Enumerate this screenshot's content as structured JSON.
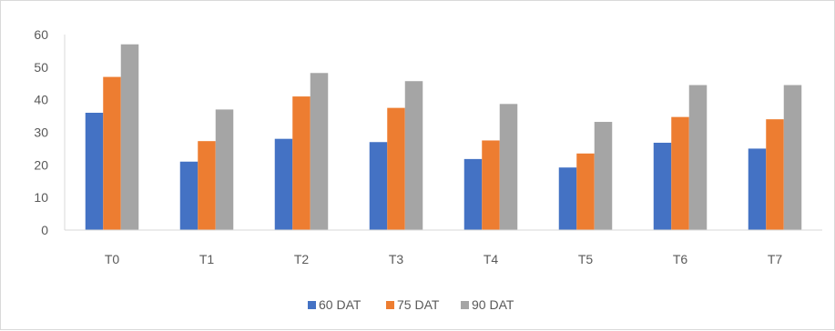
{
  "chart_data": {
    "type": "bar",
    "categories": [
      "T0",
      "T1",
      "T2",
      "T3",
      "T4",
      "T5",
      "T6",
      "T7"
    ],
    "series": [
      {
        "name": "60 DAT",
        "color": "#4472c4",
        "values": [
          36,
          21,
          28,
          27,
          21.8,
          19.2,
          26.8,
          25
        ]
      },
      {
        "name": "75 DAT",
        "color": "#ed7d31",
        "values": [
          47,
          27.3,
          41,
          37.5,
          27.5,
          23.5,
          34.7,
          34
        ]
      },
      {
        "name": "90 DAT",
        "color": "#a5a5a5",
        "values": [
          57,
          37,
          48.2,
          45.7,
          38.7,
          33.2,
          44.5,
          44.5
        ]
      }
    ],
    "title": "",
    "xlabel": "",
    "ylabel": "",
    "ylim": [
      0,
      60
    ],
    "yticks": [
      "0",
      "10",
      "20",
      "30",
      "40",
      "50",
      "60"
    ],
    "grid": false,
    "legend": "bottom"
  }
}
